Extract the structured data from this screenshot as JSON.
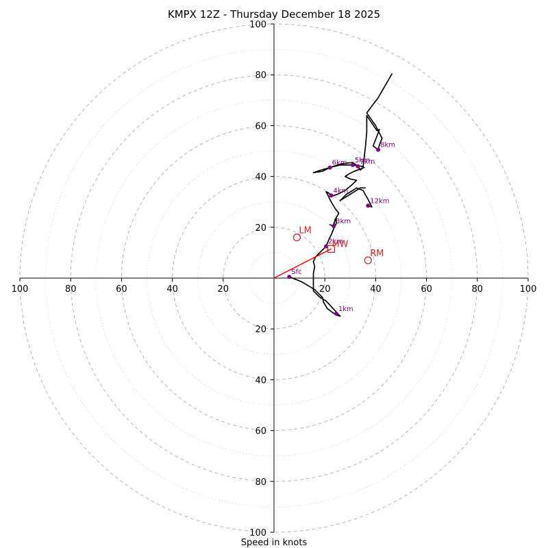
{
  "chart_data": {
    "type": "hodograph",
    "title": "KMPX 12Z - Thursday December 18 2025",
    "xlabel": "Speed in knots",
    "range": [
      -100,
      100
    ],
    "rings_dashed": [
      20,
      40,
      60,
      80,
      100
    ],
    "rings_dotted": [
      10,
      30,
      50,
      70,
      90
    ],
    "tick_labels": [
      "100",
      "80",
      "60",
      "40",
      "20",
      "20",
      "40",
      "60",
      "80",
      "100"
    ],
    "x_ticks": [
      -100,
      -80,
      -60,
      -40,
      -20,
      20,
      40,
      60,
      80,
      100
    ],
    "y_ticks": [
      100,
      80,
      60,
      40,
      20,
      -20,
      -40,
      -60,
      -80,
      -100
    ],
    "colors": {
      "profile": "#000000",
      "height_marker": "#800080",
      "motion": "#c62828",
      "shear_vector": "#ff0000",
      "grid": "#bbbbbb"
    },
    "profile": [
      [
        6,
        0.5
      ],
      [
        11,
        -1.5
      ],
      [
        16,
        -4.5
      ],
      [
        19,
        -7.5
      ],
      [
        19.5,
        -9.5
      ],
      [
        21,
        -12
      ],
      [
        23,
        -13.5
      ],
      [
        24.5,
        -14.5
      ],
      [
        26,
        -15
      ],
      [
        20.5,
        -9
      ],
      [
        18,
        -7.5
      ],
      [
        15.5,
        -5
      ],
      [
        15.5,
        -1
      ],
      [
        15.5,
        2
      ],
      [
        16,
        4.5
      ],
      [
        15.5,
        6.5
      ],
      [
        16.5,
        8.5
      ],
      [
        18,
        10
      ],
      [
        20.5,
        12.5
      ],
      [
        21.5,
        15
      ],
      [
        22.5,
        17
      ],
      [
        23.5,
        19.5
      ],
      [
        24.5,
        21.5
      ],
      [
        24.5,
        23.5
      ],
      [
        24,
        22.5
      ],
      [
        23.5,
        21.5
      ],
      [
        23.5,
        20.5
      ],
      [
        22,
        21
      ],
      [
        23.5,
        20.5
      ],
      [
        24,
        23
      ],
      [
        25.5,
        25.5
      ],
      [
        24,
        27.5
      ],
      [
        22.5,
        30
      ],
      [
        21.5,
        32
      ],
      [
        20.5,
        34
      ],
      [
        21.5,
        33.5
      ],
      [
        22.5,
        32
      ],
      [
        23.5,
        32.5
      ],
      [
        25,
        33
      ],
      [
        28,
        34.5
      ],
      [
        31,
        37
      ],
      [
        32.5,
        38.5
      ],
      [
        30,
        39
      ],
      [
        28,
        40
      ],
      [
        29.5,
        41
      ],
      [
        31.5,
        42
      ],
      [
        35.5,
        43.5
      ],
      [
        34.5,
        44
      ],
      [
        31,
        44.5
      ],
      [
        28.5,
        44.5
      ],
      [
        26,
        44.5
      ],
      [
        22,
        43.5
      ],
      [
        19,
        42
      ],
      [
        15.5,
        41.5
      ],
      [
        18.5,
        42.5
      ],
      [
        22,
        43.5
      ],
      [
        26.5,
        45
      ],
      [
        31,
        45.5
      ],
      [
        33,
        44
      ],
      [
        34,
        42.5
      ],
      [
        35,
        43.5
      ],
      [
        36,
        52
      ],
      [
        36.5,
        57.5
      ],
      [
        36.5,
        60
      ],
      [
        36.5,
        64
      ],
      [
        40.5,
        58
      ],
      [
        41.5,
        58.5
      ],
      [
        39,
        52
      ],
      [
        41,
        50.5
      ],
      [
        41.5,
        52.5
      ],
      [
        42.5,
        55
      ],
      [
        40,
        60
      ],
      [
        36.5,
        65
      ],
      [
        41,
        71
      ],
      [
        46.5,
        80.5
      ]
    ],
    "upper_segment": [
      [
        36.5,
        28.5
      ],
      [
        38.5,
        28
      ],
      [
        37,
        31
      ],
      [
        35,
        34.5
      ],
      [
        32.5,
        35.5
      ],
      [
        31,
        34.5
      ],
      [
        28.5,
        33
      ],
      [
        26,
        30.5
      ],
      [
        30,
        33
      ],
      [
        34,
        35.5
      ],
      [
        36,
        35.5
      ]
    ],
    "height_markers": [
      {
        "label": "Sfc",
        "u": 6,
        "v": 0.5
      },
      {
        "label": "1km",
        "u": 24.5,
        "v": -14
      },
      {
        "label": "2km",
        "u": 20.5,
        "v": 12.5
      },
      {
        "label": "3km",
        "u": 23.5,
        "v": 20.5
      },
      {
        "label": "4km",
        "u": 22.5,
        "v": 32.5
      },
      {
        "label": "5km",
        "u": 31,
        "v": 44.5
      },
      {
        "label": "6km",
        "u": 22,
        "v": 43.5
      },
      {
        "label": "7km",
        "u": 33,
        "v": 44
      },
      {
        "label": "8km",
        "u": 41,
        "v": 50.5
      },
      {
        "label": "12km",
        "u": 37,
        "v": 28.5
      }
    ],
    "storm_motion": [
      {
        "label": "LM",
        "u": 9,
        "v": 16
      },
      {
        "label": "RM",
        "u": 37,
        "v": 7
      }
    ],
    "mean_wind": {
      "label": "MW",
      "u": 22.5,
      "v": 11.5
    },
    "shear_vector": {
      "from": [
        0,
        0
      ],
      "to": [
        22.5,
        11.5
      ]
    }
  }
}
